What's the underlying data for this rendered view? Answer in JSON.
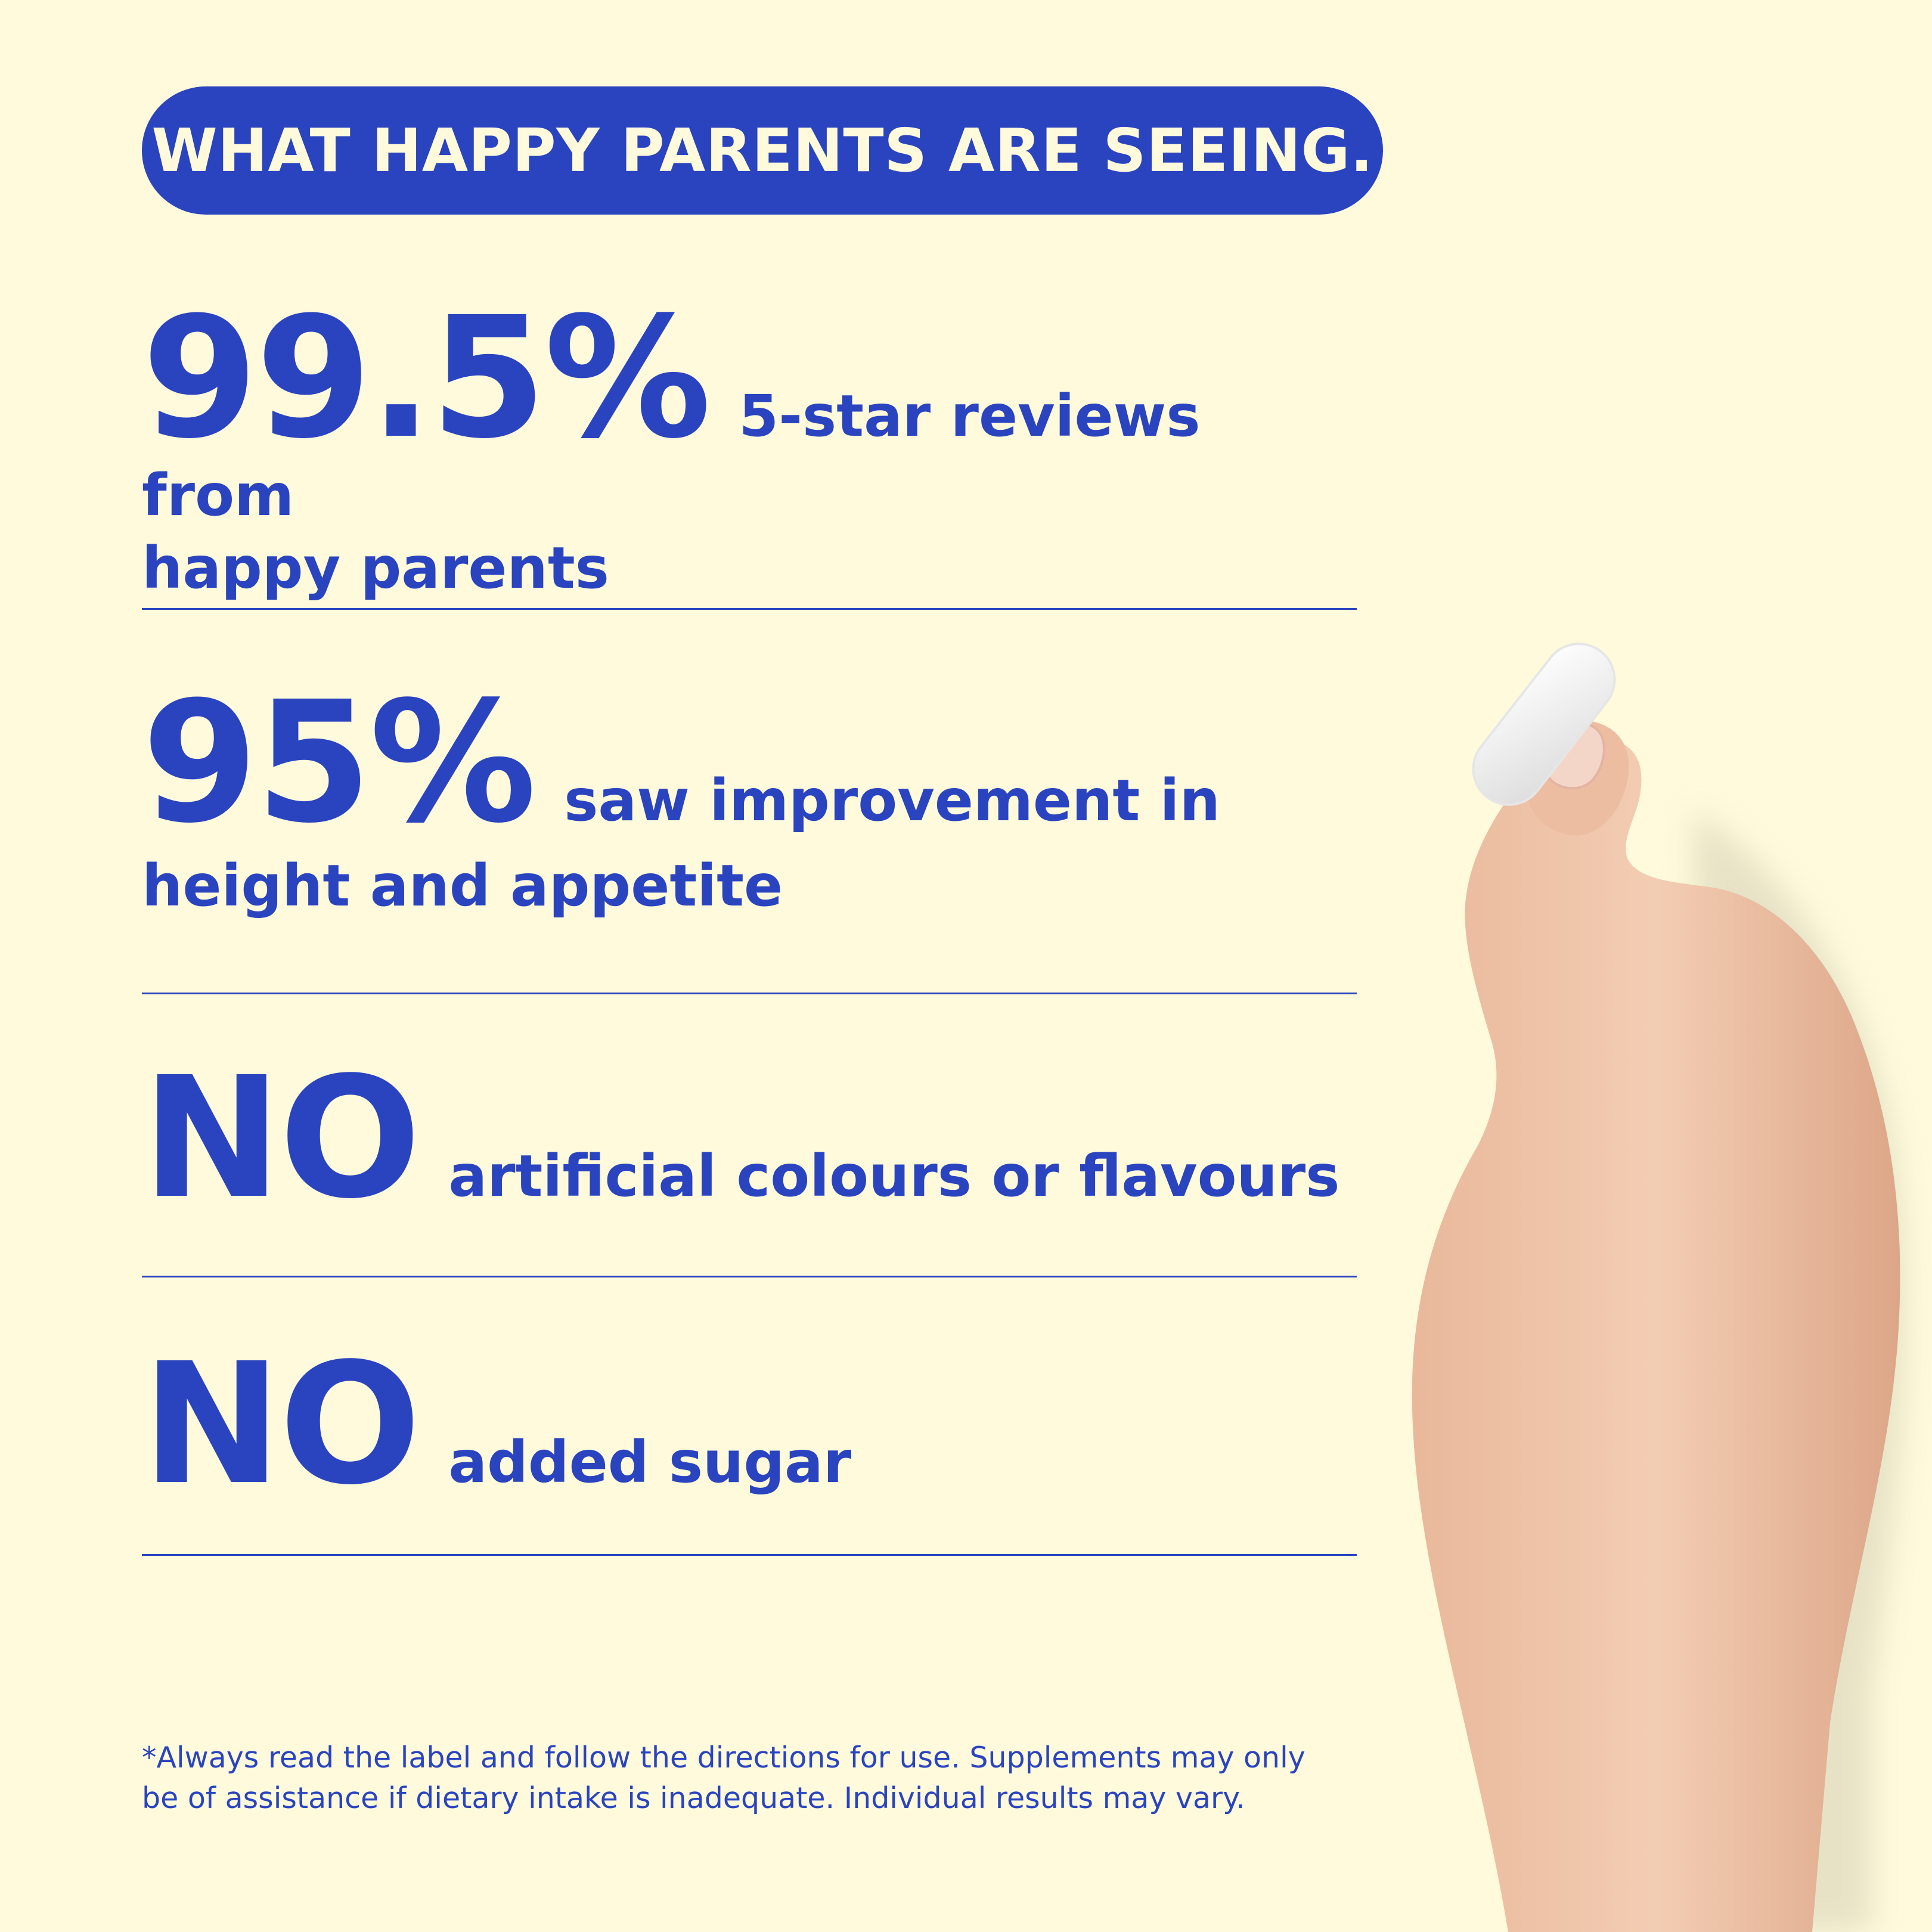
{
  "header": {
    "title": "WHAT HAPPY PARENTS ARE SEEING."
  },
  "stats": [
    {
      "big": "99.5%",
      "text": "5-star reviews from",
      "wrap": "happy parents"
    },
    {
      "big": "95%",
      "text": "saw improvement in",
      "wrap": "height and appetite"
    },
    {
      "big": "NO",
      "text": "artificial colours or flavours"
    },
    {
      "big": "NO",
      "text": "added sugar"
    }
  ],
  "disclaimer": {
    "line1": "*Always read the label and follow the directions for use. Supplements may only",
    "line2": "be of assistance if dietary intake is inadequate. Individual results may vary."
  },
  "colors": {
    "background": "#FEFADB",
    "accent": "#2A44C0"
  }
}
